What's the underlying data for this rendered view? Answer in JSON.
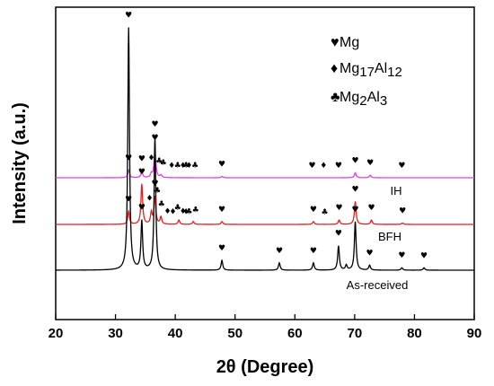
{
  "chart_data": {
    "type": "line",
    "xlabel": "2θ (Degree)",
    "ylabel": "Intensity (a.u.)",
    "xlim": [
      20,
      90
    ],
    "xticks": [
      20,
      30,
      40,
      50,
      60,
      70,
      80,
      90
    ],
    "grid": false,
    "legend_position": "top-right",
    "marker_colors": {
      "pattern_ih": "#e040e0",
      "pattern_bfh": "#e02020",
      "pattern_asr": "#000000"
    },
    "legend": [
      {
        "symbol": "♥",
        "label_main": "Mg",
        "label_sub1": "",
        "label_mid": "",
        "label_sub2": ""
      },
      {
        "symbol": "♦",
        "label_main": "Mg",
        "label_sub1": "17",
        "label_mid": "Al",
        "label_sub2": "12"
      },
      {
        "symbol": "♣",
        "label_main": "Mg",
        "label_sub1": "2",
        "label_mid": "Al",
        "label_sub2": "3"
      }
    ],
    "series": [
      {
        "name": "IH",
        "color": "#e040e0",
        "baseline": 0.0,
        "peaks": [
          {
            "x": 32.2,
            "h": 0.06
          },
          {
            "x": 34.4,
            "h": 0.05
          },
          {
            "x": 36.0,
            "h": 0.03
          },
          {
            "x": 36.6,
            "h": 0.22
          },
          {
            "x": 37.6,
            "h": 0.02
          },
          {
            "x": 47.8,
            "h": 0.01
          },
          {
            "x": 70.1,
            "h": 0.04
          },
          {
            "x": 72.6,
            "h": 0.02
          }
        ],
        "markers": [
          {
            "x": 32.2,
            "symbol": "♥"
          },
          {
            "x": 34.4,
            "symbol": "♥"
          },
          {
            "x": 36.0,
            "symbol": "♦"
          },
          {
            "x": 36.6,
            "symbol": "♥"
          },
          {
            "x": 37.3,
            "symbol": "♣"
          },
          {
            "x": 38.0,
            "symbol": "♣"
          },
          {
            "x": 39.4,
            "symbol": "♦"
          },
          {
            "x": 40.4,
            "symbol": "♣"
          },
          {
            "x": 41.3,
            "symbol": "♦"
          },
          {
            "x": 41.8,
            "symbol": "♣"
          },
          {
            "x": 42.3,
            "symbol": "♦"
          },
          {
            "x": 43.3,
            "symbol": "♣"
          },
          {
            "x": 47.8,
            "symbol": "♥"
          },
          {
            "x": 62.9,
            "symbol": "♥"
          },
          {
            "x": 64.8,
            "symbol": "♦"
          },
          {
            "x": 67.3,
            "symbol": "♥"
          },
          {
            "x": 70.1,
            "symbol": "♥"
          },
          {
            "x": 72.6,
            "symbol": "♥"
          },
          {
            "x": 77.9,
            "symbol": "♥"
          }
        ]
      },
      {
        "name": "BFH",
        "color": "#e02020",
        "baseline": 0.0,
        "peaks": [
          {
            "x": 32.2,
            "h": 0.09
          },
          {
            "x": 34.4,
            "h": 0.28
          },
          {
            "x": 36.0,
            "h": 0.08
          },
          {
            "x": 36.6,
            "h": 0.19
          },
          {
            "x": 37.6,
            "h": 0.05
          },
          {
            "x": 40.6,
            "h": 0.03
          },
          {
            "x": 43.0,
            "h": 0.02
          },
          {
            "x": 47.8,
            "h": 0.02
          },
          {
            "x": 63.1,
            "h": 0.02
          },
          {
            "x": 67.4,
            "h": 0.03
          },
          {
            "x": 70.1,
            "h": 0.16
          },
          {
            "x": 72.8,
            "h": 0.03
          },
          {
            "x": 78.0,
            "h": 0.01
          }
        ],
        "markers": [
          {
            "x": 32.2,
            "symbol": "♥"
          },
          {
            "x": 34.4,
            "symbol": "♥"
          },
          {
            "x": 35.7,
            "symbol": "♦"
          },
          {
            "x": 36.6,
            "symbol": "♥"
          },
          {
            "x": 37.0,
            "symbol": "♣"
          },
          {
            "x": 37.7,
            "symbol": "♣"
          },
          {
            "x": 38.7,
            "symbol": "♦"
          },
          {
            "x": 39.6,
            "symbol": "♦"
          },
          {
            "x": 40.4,
            "symbol": "♣"
          },
          {
            "x": 41.3,
            "symbol": "♦"
          },
          {
            "x": 41.8,
            "symbol": "♦"
          },
          {
            "x": 42.3,
            "symbol": "♣"
          },
          {
            "x": 43.4,
            "symbol": "♣"
          },
          {
            "x": 47.8,
            "symbol": "♥"
          },
          {
            "x": 63.1,
            "symbol": "♥"
          },
          {
            "x": 65.0,
            "symbol": "♣"
          },
          {
            "x": 67.4,
            "symbol": "♥"
          },
          {
            "x": 70.1,
            "symbol": "♥"
          },
          {
            "x": 72.8,
            "symbol": "♥"
          },
          {
            "x": 78.0,
            "symbol": "♥"
          }
        ]
      },
      {
        "name": "As-received",
        "color": "#000000",
        "baseline": 0.0,
        "peaks": [
          {
            "x": 32.2,
            "h": 1.0
          },
          {
            "x": 34.4,
            "h": 0.2
          },
          {
            "x": 36.6,
            "h": 0.55
          },
          {
            "x": 47.8,
            "h": 0.04
          },
          {
            "x": 57.4,
            "h": 0.03
          },
          {
            "x": 63.1,
            "h": 0.03
          },
          {
            "x": 67.3,
            "h": 0.1
          },
          {
            "x": 68.6,
            "h": 0.02
          },
          {
            "x": 70.1,
            "h": 0.2
          },
          {
            "x": 72.5,
            "h": 0.02
          },
          {
            "x": 77.9,
            "h": 0.01
          },
          {
            "x": 81.6,
            "h": 0.01
          }
        ],
        "markers": [
          {
            "x": 32.2,
            "symbol": "♥"
          },
          {
            "x": 34.4,
            "symbol": "♥"
          },
          {
            "x": 36.6,
            "symbol": "♥"
          },
          {
            "x": 47.8,
            "symbol": "♥"
          },
          {
            "x": 57.4,
            "symbol": "♥"
          },
          {
            "x": 63.1,
            "symbol": "♥"
          },
          {
            "x": 67.3,
            "symbol": "♥"
          },
          {
            "x": 70.1,
            "symbol": "♥"
          },
          {
            "x": 72.5,
            "symbol": "♥"
          },
          {
            "x": 77.9,
            "symbol": "♥"
          },
          {
            "x": 81.6,
            "symbol": "♥"
          }
        ]
      }
    ]
  }
}
